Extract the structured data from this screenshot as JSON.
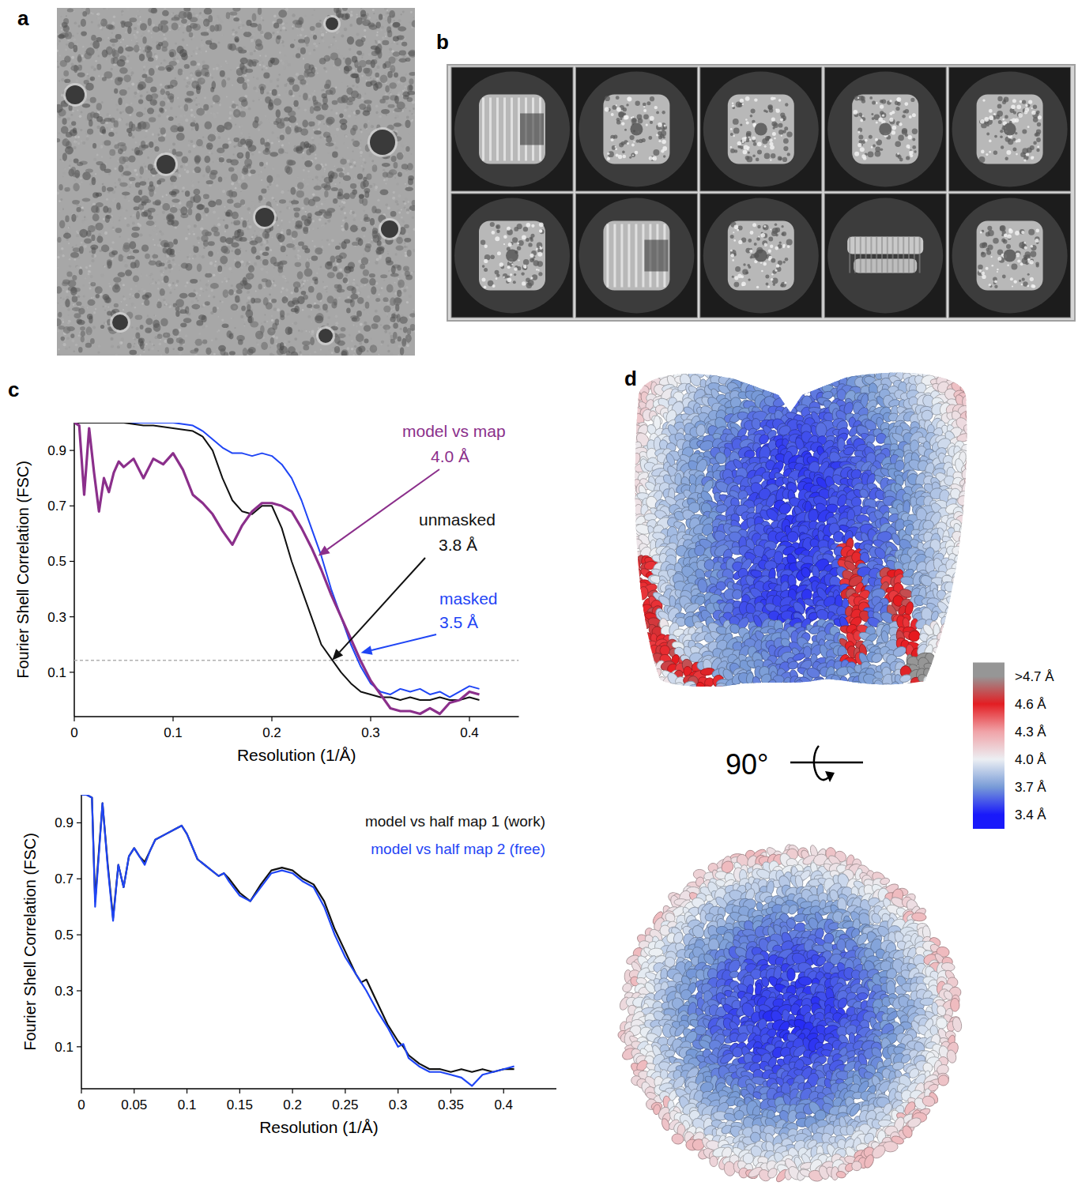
{
  "letters": [
    "a",
    "b",
    "c",
    "d"
  ],
  "panel_d": {
    "rotation_label": "90°",
    "colorbar": {
      "range": [
        3.4,
        4.7
      ],
      "ticks": [
        {
          "value": 4.7,
          "label": ">4.7 Å"
        },
        {
          "value": 4.6,
          "label": "4.6 Å"
        },
        {
          "value": 4.3,
          "label": "4.3 Å"
        },
        {
          "value": 4.0,
          "label": "4.0 Å"
        },
        {
          "value": 3.7,
          "label": "3.7 Å"
        },
        {
          "value": 3.4,
          "label": "3.4 Å"
        }
      ]
    }
  },
  "chart_data": [
    {
      "type": "line",
      "xlabel": "Resolution (1/Å)",
      "ylabel": "Fourier Shell Correlation (FSC)",
      "xlim": [
        0,
        0.45
      ],
      "ylim": [
        -0.06,
        1.0
      ],
      "xticks": [
        0,
        0.1,
        0.2,
        0.3,
        0.4
      ],
      "yticks": [
        0.1,
        0.3,
        0.5,
        0.7,
        0.9
      ],
      "grid": false,
      "threshold": 0.143,
      "series": [
        {
          "name": "masked",
          "color": "#1f45f5",
          "x": [
            0,
            0.01,
            0.02,
            0.03,
            0.04,
            0.05,
            0.06,
            0.07,
            0.08,
            0.09,
            0.1,
            0.11,
            0.12,
            0.13,
            0.14,
            0.15,
            0.16,
            0.17,
            0.18,
            0.19,
            0.2,
            0.21,
            0.22,
            0.23,
            0.24,
            0.25,
            0.26,
            0.27,
            0.28,
            0.29,
            0.3,
            0.31,
            0.32,
            0.33,
            0.34,
            0.35,
            0.36,
            0.37,
            0.38,
            0.39,
            0.4,
            0.41
          ],
          "values": [
            1,
            1,
            1,
            1,
            1,
            1,
            1,
            1,
            1,
            1,
            1,
            0.995,
            0.99,
            0.97,
            0.94,
            0.91,
            0.89,
            0.89,
            0.88,
            0.89,
            0.88,
            0.85,
            0.8,
            0.72,
            0.62,
            0.52,
            0.4,
            0.3,
            0.2,
            0.12,
            0.06,
            0.03,
            0.02,
            0.04,
            0.03,
            0.04,
            0.02,
            0.03,
            0.01,
            0.03,
            0.05,
            0.04
          ]
        },
        {
          "name": "unmasked",
          "color": "#111111",
          "x": [
            0,
            0.01,
            0.02,
            0.03,
            0.04,
            0.05,
            0.06,
            0.07,
            0.08,
            0.09,
            0.1,
            0.11,
            0.12,
            0.13,
            0.14,
            0.15,
            0.16,
            0.17,
            0.18,
            0.19,
            0.2,
            0.21,
            0.22,
            0.23,
            0.24,
            0.25,
            0.26,
            0.27,
            0.28,
            0.29,
            0.3,
            0.31,
            0.32,
            0.33,
            0.34,
            0.35,
            0.36,
            0.37,
            0.38,
            0.39,
            0.4,
            0.41
          ],
          "values": [
            1,
            1,
            1,
            1,
            1,
            1,
            0.995,
            0.99,
            0.99,
            0.985,
            0.98,
            0.975,
            0.97,
            0.95,
            0.9,
            0.8,
            0.72,
            0.68,
            0.67,
            0.7,
            0.7,
            0.62,
            0.5,
            0.4,
            0.3,
            0.2,
            0.15,
            0.1,
            0.06,
            0.03,
            0.02,
            0.01,
            0.01,
            0,
            0.01,
            0,
            0,
            0.01,
            0,
            0,
            0.01,
            0
          ]
        },
        {
          "name": "model vs map",
          "color": "#8b2f8b",
          "x": [
            0,
            0.005,
            0.01,
            0.015,
            0.02,
            0.025,
            0.03,
            0.035,
            0.04,
            0.045,
            0.05,
            0.06,
            0.07,
            0.08,
            0.09,
            0.1,
            0.11,
            0.12,
            0.13,
            0.14,
            0.15,
            0.16,
            0.17,
            0.18,
            0.19,
            0.2,
            0.21,
            0.22,
            0.23,
            0.24,
            0.25,
            0.26,
            0.27,
            0.28,
            0.29,
            0.3,
            0.31,
            0.32,
            0.33,
            0.34,
            0.35,
            0.36,
            0.37,
            0.38,
            0.39,
            0.4,
            0.41
          ],
          "values": [
            1,
            0.99,
            0.74,
            0.98,
            0.82,
            0.68,
            0.8,
            0.75,
            0.82,
            0.86,
            0.84,
            0.87,
            0.8,
            0.87,
            0.85,
            0.89,
            0.83,
            0.74,
            0.71,
            0.67,
            0.61,
            0.56,
            0.63,
            0.68,
            0.71,
            0.71,
            0.7,
            0.68,
            0.62,
            0.55,
            0.47,
            0.38,
            0.3,
            0.22,
            0.14,
            0.07,
            0.02,
            -0.03,
            -0.04,
            -0.04,
            -0.05,
            -0.03,
            -0.05,
            -0.01,
            0,
            0.03,
            0.02
          ]
        }
      ],
      "annotations": [
        {
          "series": 0,
          "label": "3.5 Å",
          "x": 0.29,
          "y": 0.17
        },
        {
          "series": 1,
          "label": "3.8 Å",
          "x": 0.261,
          "y": 0.143
        },
        {
          "series": 2,
          "label": "4.0 Å",
          "x": 0.247,
          "y": 0.52
        }
      ]
    },
    {
      "type": "line",
      "xlabel": "Resolution (1/Å)",
      "ylabel": "Fourier Shell Correlation (FSC)",
      "xlim": [
        0,
        0.45
      ],
      "ylim": [
        -0.05,
        1.0
      ],
      "xticks": [
        0,
        0.05,
        0.1,
        0.15,
        0.2,
        0.25,
        0.3,
        0.35,
        0.4
      ],
      "yticks": [
        0.1,
        0.3,
        0.5,
        0.7,
        0.9
      ],
      "grid": false,
      "legend": "top-right",
      "x": [
        0,
        0.005,
        0.01,
        0.013,
        0.02,
        0.025,
        0.03,
        0.035,
        0.04,
        0.045,
        0.05,
        0.055,
        0.06,
        0.065,
        0.07,
        0.08,
        0.09,
        0.095,
        0.1,
        0.11,
        0.12,
        0.13,
        0.135,
        0.14,
        0.15,
        0.16,
        0.17,
        0.18,
        0.19,
        0.2,
        0.21,
        0.22,
        0.23,
        0.24,
        0.25,
        0.26,
        0.265,
        0.27,
        0.28,
        0.29,
        0.3,
        0.305,
        0.31,
        0.32,
        0.33,
        0.34,
        0.35,
        0.36,
        0.37,
        0.38,
        0.39,
        0.4,
        0.41
      ],
      "series": [
        {
          "name": "model vs half map 1 (work)",
          "color": "#111111",
          "values": [
            1,
            1,
            0.99,
            0.62,
            0.97,
            0.75,
            0.56,
            0.75,
            0.67,
            0.78,
            0.81,
            0.78,
            0.76,
            0.8,
            0.84,
            0.86,
            0.88,
            0.89,
            0.86,
            0.77,
            0.74,
            0.71,
            0.72,
            0.7,
            0.65,
            0.62,
            0.68,
            0.73,
            0.74,
            0.73,
            0.7,
            0.68,
            0.62,
            0.52,
            0.44,
            0.36,
            0.33,
            0.34,
            0.26,
            0.18,
            0.12,
            0.1,
            0.07,
            0.04,
            0.02,
            0.02,
            0.01,
            0.02,
            0.01,
            0.02,
            0.01,
            0.02,
            0.02
          ]
        },
        {
          "name": "model vs half map 2 (free)",
          "color": "#1f45f5",
          "values": [
            1,
            1,
            0.99,
            0.6,
            0.97,
            0.74,
            0.55,
            0.75,
            0.67,
            0.78,
            0.81,
            0.78,
            0.75,
            0.8,
            0.84,
            0.86,
            0.88,
            0.89,
            0.86,
            0.77,
            0.74,
            0.71,
            0.72,
            0.69,
            0.64,
            0.62,
            0.67,
            0.72,
            0.73,
            0.72,
            0.69,
            0.67,
            0.6,
            0.5,
            0.42,
            0.36,
            0.33,
            0.3,
            0.23,
            0.17,
            0.1,
            0.11,
            0.06,
            0.03,
            0.01,
            0.01,
            0,
            -0.01,
            -0.04,
            0,
            0.01,
            0.02,
            0.03
          ]
        }
      ]
    }
  ]
}
